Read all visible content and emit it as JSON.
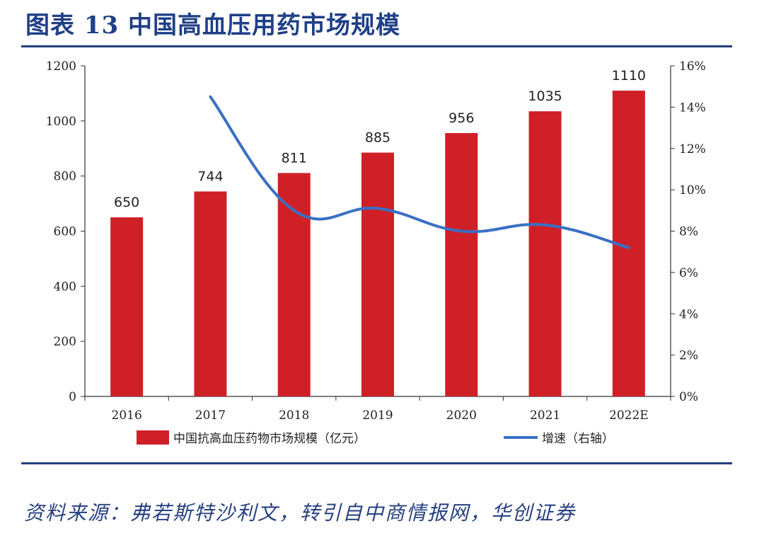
{
  "header": {
    "title": "图表 13  中国高血压用药市场规模"
  },
  "footer": {
    "source": "资料来源：弗若斯特沙利文，转引自中商情报网，华创证券"
  },
  "colors": {
    "bar": "#d02027",
    "line": "#3a6fc4",
    "axis": "#333333",
    "accent": "#24407e"
  },
  "chart_data": {
    "type": "bar",
    "categories": [
      "2016",
      "2017",
      "2018",
      "2019",
      "2020",
      "2021",
      "2022E"
    ],
    "series": [
      {
        "name": "中国抗高血压药物市场规模（亿元）",
        "type": "bar",
        "axis": "left",
        "values": [
          650,
          744,
          811,
          885,
          956,
          1035,
          1110
        ]
      },
      {
        "name": "增速（右轴）",
        "type": "line",
        "axis": "right",
        "values": [
          null,
          0.145,
          0.09,
          0.091,
          0.08,
          0.083,
          0.072
        ]
      }
    ],
    "ylim": [
      0,
      1200
    ],
    "yticks": [
      "0",
      "200",
      "400",
      "600",
      "800",
      "1000",
      "1200"
    ],
    "y2lim": [
      0,
      0.16
    ],
    "y2ticks": [
      "0%",
      "2%",
      "4%",
      "6%",
      "8%",
      "10%",
      "12%",
      "14%",
      "16%"
    ],
    "legend_position": "bottom"
  }
}
